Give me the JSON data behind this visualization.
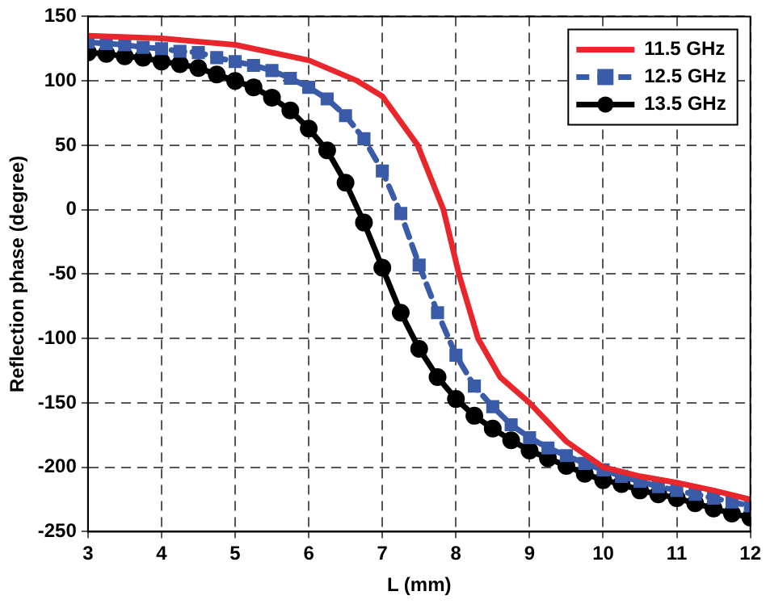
{
  "chart_data": {
    "type": "line",
    "xlabel": "L (mm)",
    "ylabel": "Reflection phase (degree)",
    "xlim": [
      3,
      12
    ],
    "xticks": [
      3,
      4,
      5,
      6,
      7,
      8,
      9,
      10,
      11,
      12
    ],
    "ylim": [
      -250,
      150
    ],
    "yticks": [
      -250,
      -200,
      -150,
      -100,
      -50,
      0,
      50,
      100,
      150
    ],
    "grid": true,
    "legend": "top right",
    "series": [
      {
        "name": "11.5 GHz",
        "color": "#e8262b",
        "marker": "none",
        "line_style": "solid",
        "x": [
          3,
          4,
          5,
          6,
          6.66,
          7,
          7.48,
          7.83,
          8.04,
          8.3,
          8.6,
          9,
          9.5,
          10,
          10.5,
          11,
          11.5,
          12
        ],
        "values": [
          135,
          133,
          128,
          116,
          100,
          88,
          50,
          0,
          -50,
          -100,
          -130,
          -150,
          -180,
          -200,
          -207,
          -212,
          -218,
          -225
        ]
      },
      {
        "name": "12.5 GHz",
        "color": "#3a5ba8",
        "marker": "square",
        "line_style": "dashed",
        "x": [
          3,
          3.25,
          3.5,
          3.75,
          4,
          4.25,
          4.5,
          4.75,
          5,
          5.25,
          5.5,
          5.75,
          6,
          6.25,
          6.5,
          6.75,
          7,
          7.25,
          7.5,
          7.75,
          8,
          8.25,
          8.5,
          8.75,
          9,
          9.25,
          9.5,
          9.75,
          10,
          10.25,
          10.5,
          10.75,
          11,
          11.25,
          11.5,
          11.75,
          12
        ],
        "values": [
          130,
          129,
          128,
          126,
          125,
          123,
          122,
          118,
          115,
          112,
          108,
          102,
          95,
          86,
          73,
          55,
          30,
          -3,
          -43,
          -80,
          -113,
          -137,
          -153,
          -167,
          -177,
          -185,
          -191,
          -197,
          -202,
          -207,
          -211,
          -215,
          -218,
          -221,
          -224,
          -227,
          -230
        ]
      },
      {
        "name": "13.5 GHz",
        "color": "#000000",
        "marker": "circle",
        "line_style": "solid",
        "x": [
          3,
          3.25,
          3.5,
          3.75,
          4,
          4.25,
          4.5,
          4.75,
          5,
          5.25,
          5.5,
          5.75,
          6,
          6.25,
          6.5,
          6.75,
          7,
          7.25,
          7.5,
          7.75,
          8,
          8.25,
          8.5,
          8.75,
          9,
          9.25,
          9.5,
          9.75,
          10,
          10.25,
          10.5,
          10.75,
          11,
          11.25,
          11.5,
          11.75,
          12
        ],
        "values": [
          122,
          121,
          119,
          118,
          115,
          113,
          110,
          105,
          100,
          95,
          87,
          77,
          63,
          46,
          21,
          -10,
          -45,
          -80,
          -108,
          -130,
          -147,
          -160,
          -170,
          -179,
          -187,
          -193,
          -199,
          -205,
          -210,
          -213,
          -218,
          -221,
          -224,
          -228,
          -232,
          -236,
          -239
        ]
      }
    ]
  }
}
